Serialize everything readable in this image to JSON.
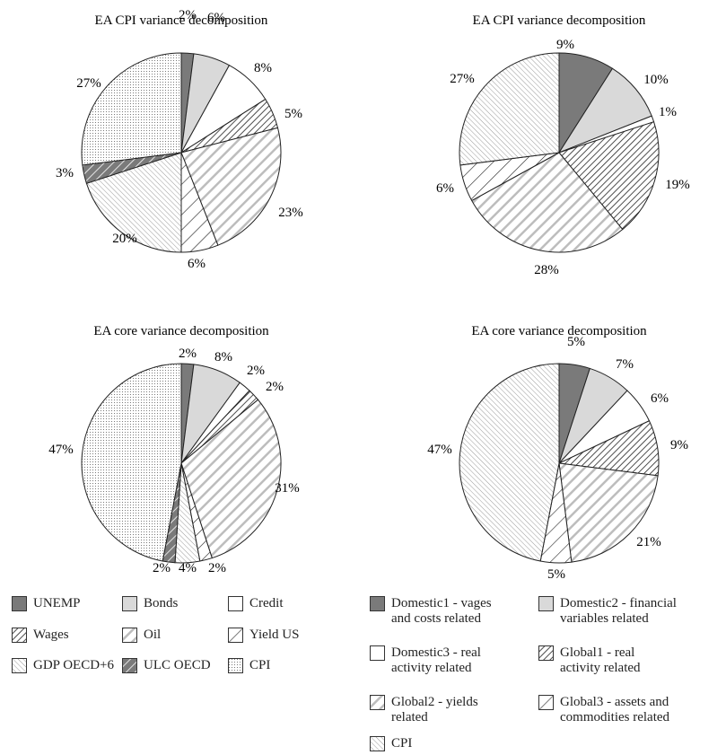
{
  "chart_data": [
    {
      "type": "pie",
      "title": "EA CPI variance decomposition",
      "categories": [
        "UNEMP",
        "Bonds",
        "Credit",
        "Wages",
        "Oil",
        "Yield US",
        "GDP OECD+6",
        "ULC OECD",
        "CPI"
      ],
      "values": [
        2,
        6,
        8,
        5,
        23,
        6,
        20,
        3,
        27
      ],
      "labels": [
        "2%",
        "6%",
        "8%",
        "5%",
        "23%",
        "6%",
        "20%",
        "3%",
        "27%"
      ]
    },
    {
      "type": "pie",
      "title": "EA CPI variance decomposition",
      "categories": [
        "Domestic1 - vages and costs related",
        "Domestic2 - financial variables related",
        "Domestic3 - real activity related",
        "Global1 - real activity related",
        "Global2 - yields related",
        "Global3 - assets and commodities related",
        "CPI"
      ],
      "values": [
        9,
        10,
        1,
        19,
        28,
        6,
        27
      ],
      "labels": [
        "9%",
        "10%",
        "1%",
        "19%",
        "28%",
        "6%",
        "27%"
      ]
    },
    {
      "type": "pie",
      "title": "EA core variance decomposition",
      "categories": [
        "UNEMP",
        "Bonds",
        "Credit",
        "Wages",
        "Oil",
        "Yield US",
        "GDP OECD+6",
        "ULC OECD",
        "CPI"
      ],
      "values": [
        2,
        8,
        2,
        2,
        31,
        2,
        4,
        2,
        47
      ],
      "labels": [
        "2%",
        "8%",
        "2%",
        "2%",
        "31%",
        "2%",
        "4%",
        "2%",
        "47%"
      ]
    },
    {
      "type": "pie",
      "title": "EA core variance decomposition",
      "categories": [
        "Domestic1 - vages and costs related",
        "Domestic2 - financial variables related",
        "Domestic3 - real activity related",
        "Global1 - real activity related",
        "Global2 - yields related",
        "Global3 - assets and commodities related",
        "CPI"
      ],
      "values": [
        5,
        7,
        6,
        9,
        21,
        5,
        47
      ],
      "labels": [
        "5%",
        "7%",
        "6%",
        "9%",
        "21%",
        "5%",
        "47%"
      ]
    }
  ],
  "legend_left": [
    {
      "label": "UNEMP",
      "pattern": "dark"
    },
    {
      "label": "Bonds",
      "pattern": "light"
    },
    {
      "label": "Credit",
      "pattern": "white"
    },
    {
      "label": "Wages",
      "pattern": "dense-diag"
    },
    {
      "label": "Oil",
      "pattern": "grey-diag"
    },
    {
      "label": "Yield US",
      "pattern": "sparse-diag"
    },
    {
      "label": "GDP OECD+6",
      "pattern": "back-diag"
    },
    {
      "label": "ULC OECD",
      "pattern": "dark-diag"
    },
    {
      "label": "CPI",
      "pattern": "dots"
    }
  ],
  "legend_right": [
    {
      "label": "Domestic1 - vages\nand costs related",
      "pattern": "dark"
    },
    {
      "label": "Domestic2 - financial\nvariables related",
      "pattern": "light"
    },
    {
      "label": "Domestic3 - real\nactivity related",
      "pattern": "white"
    },
    {
      "label": "Global1 - real\nactivity related",
      "pattern": "dense-diag"
    },
    {
      "label": "Global2 - yields\nrelated",
      "pattern": "grey-diag"
    },
    {
      "label": "Global3 - assets and\ncommodities related",
      "pattern": "sparse-diag"
    },
    {
      "label": "CPI",
      "pattern": "back-diag"
    }
  ]
}
